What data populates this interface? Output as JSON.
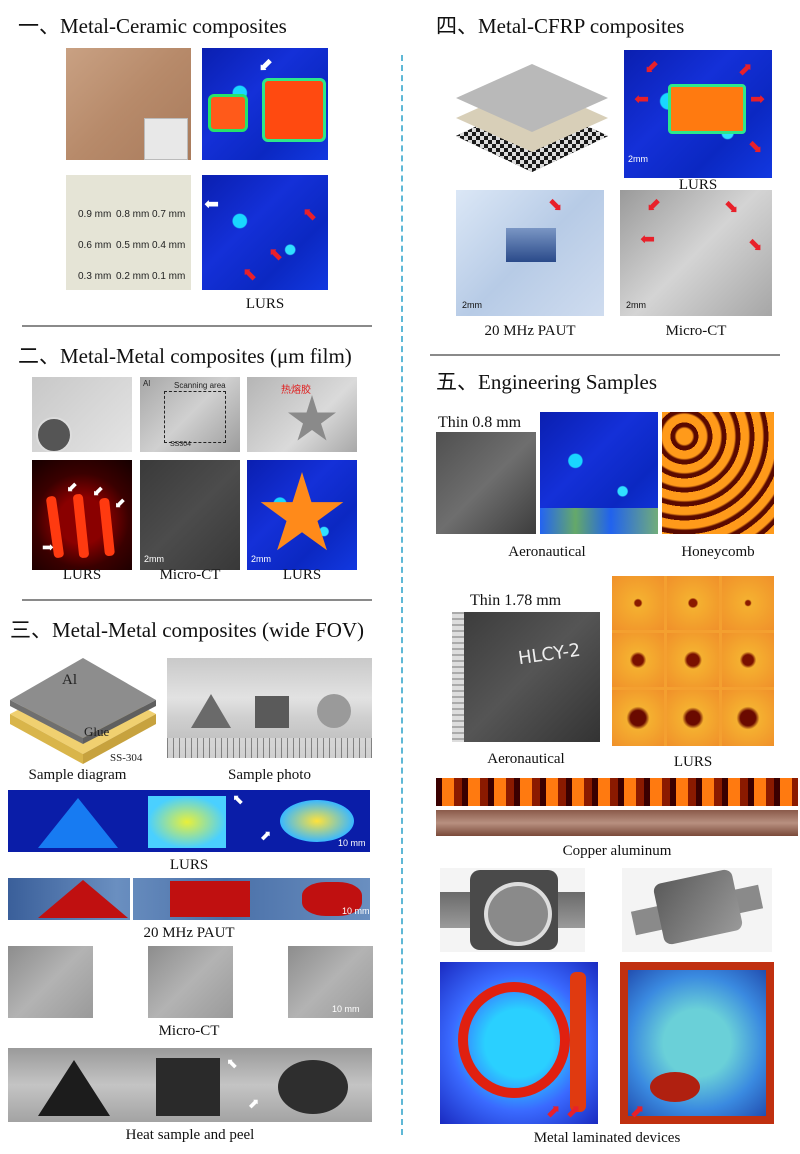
{
  "left": {
    "s1_title": "一、Metal-Ceramic composites",
    "s1_hole_labels": [
      "0.9 mm",
      "0.8 mm",
      "0.7 mm",
      "0.6 mm",
      "0.5 mm",
      "0.4 mm",
      "0.3 mm",
      "0.2 mm",
      "0.1 mm"
    ],
    "s1_cap": "LURS",
    "s2_title": "二、Metal-Metal composites (μm film)",
    "s2_photo_labels": [
      "Al",
      "Scanning area",
      "SS304",
      "热熔胶"
    ],
    "s2_caps": [
      "LURS",
      "Micro-CT",
      "LURS"
    ],
    "s2_scales": [
      "2mm",
      "2mm"
    ],
    "s3_title": "三、Metal-Metal composites (wide FOV)",
    "s3_diagram_labels": [
      "Al",
      "Glue",
      "SS-304"
    ],
    "s3_cap_diagram": "Sample diagram",
    "s3_cap_photo": "Sample photo",
    "s3_cap_lurs": "LURS",
    "s3_cap_paut": "20 MHz PAUT",
    "s3_cap_ct": "Micro-CT",
    "s3_cap_heat": "Heat sample and peel",
    "s3_scales": [
      "10 mm",
      "10 mm",
      "10 mm"
    ]
  },
  "right": {
    "s4_title": "四、Metal-CFRP composites",
    "s4_cap_lurs": "LURS",
    "s4_cap_paut": "20 MHz PAUT",
    "s4_cap_ct": "Micro-CT",
    "s4_scales": [
      "2mm",
      "2mm",
      "2mm"
    ],
    "s5_title": "五、Engineering Samples",
    "s5_thin1": "Thin 0.8 mm",
    "s5_cap_aero1": "Aeronautical",
    "s5_cap_honey": "Honeycomb",
    "s5_thin2": "Thin 1.78 mm",
    "s5_plate_text": "HLCY-2",
    "s5_cap_aero2": "Aeronautical",
    "s5_cap_lurs": "LURS",
    "s5_cap_copper": "Copper aluminum",
    "s5_cap_devices": "Metal laminated devices"
  }
}
